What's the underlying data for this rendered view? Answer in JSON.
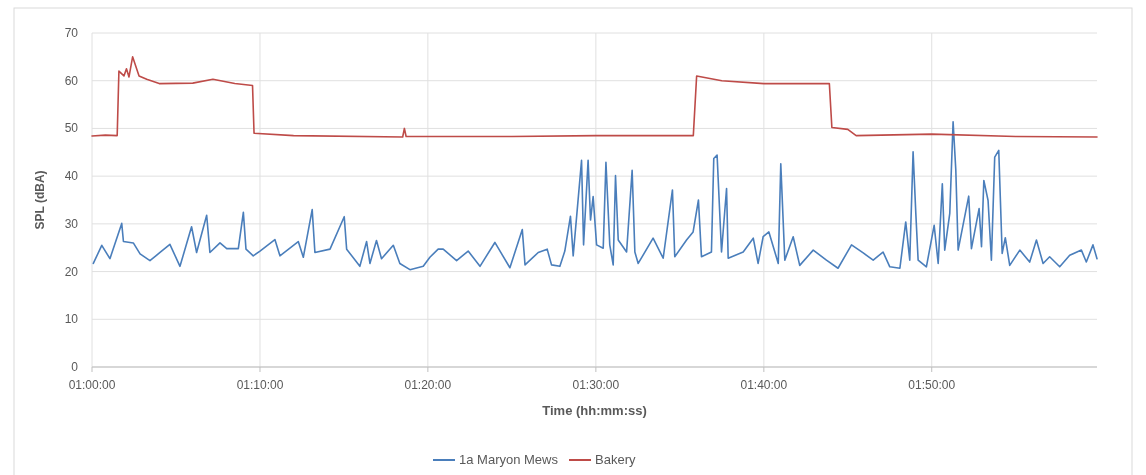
{
  "chart_data": {
    "type": "line",
    "xlabel": "Time (hh:mm:ss)",
    "ylabel": "SPL (dBA)",
    "xlim": [
      1,
      1.9973
    ],
    "xticks": [
      {
        "value": 1,
        "label": "01:00:00"
      },
      {
        "value": 1.1667,
        "label": "01:10:00"
      },
      {
        "value": 1.3333,
        "label": "01:20:00"
      },
      {
        "value": 1.5,
        "label": "01:30:00"
      },
      {
        "value": 1.6667,
        "label": "01:40:00"
      },
      {
        "value": 1.8333,
        "label": "01:50:00"
      }
    ],
    "ylim": [
      0,
      70
    ],
    "yticks": [
      0,
      10,
      20,
      30,
      40,
      50,
      60,
      70
    ],
    "grid": true,
    "legend": "bottom",
    "series": [
      {
        "name": "1a Maryon Mews",
        "color": "#4a7ebb",
        "x": [
          1.0013,
          1.0097,
          1.0178,
          1.0295,
          1.0312,
          1.041,
          1.0477,
          1.0575,
          1.0675,
          1.0773,
          1.0873,
          1.0988,
          1.1038,
          1.1138,
          1.117,
          1.127,
          1.1337,
          1.1452,
          1.1502,
          1.1528,
          1.16,
          1.1667,
          1.1815,
          1.1865,
          1.2047,
          1.2097,
          1.2185,
          1.2212,
          1.2362,
          1.2503,
          1.2527,
          1.2658,
          1.2725,
          1.2758,
          1.2823,
          1.2873,
          1.299,
          1.3055,
          1.3155,
          1.3287,
          1.3353,
          1.3435,
          1.3485,
          1.3618,
          1.3733,
          1.385,
          1.3998,
          1.4147,
          1.427,
          1.4297,
          1.4428,
          1.4517,
          1.456,
          1.4643,
          1.4692,
          1.4748,
          1.4775,
          1.4858,
          1.4878,
          1.4923,
          1.4947,
          1.4973,
          1.5007,
          1.5073,
          1.51,
          1.5138,
          1.5172,
          1.5195,
          1.5222,
          1.5305,
          1.536,
          1.5387,
          1.542,
          1.5568,
          1.5668,
          1.576,
          1.5783,
          1.59,
          1.5965,
          1.6018,
          1.6048,
          1.6147,
          1.617,
          1.6203,
          1.6247,
          1.6297,
          1.6313,
          1.6462,
          1.6562,
          1.661,
          1.666,
          1.6717,
          1.681,
          1.6835,
          1.6875,
          1.6958,
          1.7023,
          1.7157,
          1.7288,
          1.7403,
          1.7537,
          1.7653,
          1.7752,
          1.785,
          1.7917,
          1.8017,
          1.8075,
          1.8115,
          1.8148,
          1.8175,
          1.8198,
          1.828,
          1.8357,
          1.8397,
          1.8438,
          1.8462,
          1.8512,
          1.8545,
          1.8572,
          1.8595,
          1.87,
          1.8727,
          1.8803,
          1.8827,
          1.885,
          1.8892,
          1.8925,
          1.8958,
          1.8998,
          1.9032,
          1.9063,
          1.9107,
          1.9207,
          1.9305,
          1.9372,
          1.9438,
          1.9503,
          1.9603,
          1.9702,
          1.9818,
          1.9867,
          1.9933,
          1.9973
        ],
        "values": [
          21.7,
          25.5,
          22.7,
          30.1,
          26.3,
          26,
          23.7,
          22.3,
          24,
          25.7,
          21.1,
          29.4,
          24,
          31.8,
          24,
          26,
          24.8,
          24.8,
          32.4,
          24.7,
          23.3,
          24.3,
          26.7,
          23.3,
          26.3,
          23,
          33,
          24,
          24.7,
          31.5,
          24.7,
          21.1,
          26.3,
          21.7,
          26.5,
          22.7,
          25.5,
          21.7,
          20.4,
          21.1,
          23,
          24.7,
          24.7,
          22.3,
          24.3,
          21.1,
          26.1,
          20.8,
          28.8,
          21.4,
          24,
          24.7,
          21.4,
          21.1,
          24.3,
          31.6,
          23.3,
          43.3,
          25.6,
          43.3,
          30.8,
          35.7,
          25.6,
          24.9,
          42.9,
          25.6,
          21.4,
          40.1,
          26.6,
          24.1,
          41.2,
          24.1,
          21.7,
          27,
          22.8,
          37.1,
          23.1,
          26.6,
          28.3,
          35,
          23.1,
          24.1,
          43.7,
          44.4,
          24.1,
          37.4,
          22.8,
          24.1,
          27,
          21.7,
          27.3,
          28.3,
          21.7,
          42.6,
          22.4,
          27.3,
          21.3,
          24.5,
          22.4,
          20.7,
          25.6,
          23.9,
          22.4,
          24.1,
          21,
          20.7,
          30.4,
          22.4,
          45.1,
          32.2,
          22.4,
          21,
          29.7,
          21.7,
          38.4,
          24.5,
          32.2,
          51.4,
          41.2,
          24.5,
          35.8,
          24.8,
          33.2,
          25.2,
          39.1,
          34.9,
          22.4,
          44,
          45.4,
          23.8,
          27.1,
          21.3,
          24.5,
          22,
          26.6,
          21.7,
          23.1,
          21,
          23.4,
          24.5,
          22,
          25.6,
          22.7
        ]
      },
      {
        "name": "Bakery",
        "color": "#be4b48",
        "x": [
          1,
          1.0133,
          1.025,
          1.0267,
          1.0317,
          1.0342,
          1.0367,
          1.0403,
          1.0467,
          1.0543,
          1.0667,
          1.1,
          1.12,
          1.1417,
          1.1593,
          1.1608,
          1.2,
          1.3083,
          1.31,
          1.3117,
          1.4167,
          1.5,
          1.5967,
          1.6,
          1.625,
          1.6667,
          1.7317,
          1.7342,
          1.75,
          1.7583,
          1.8333,
          1.9167,
          1.9973
        ],
        "values": [
          48.4,
          48.6,
          48.5,
          62,
          61,
          62.5,
          60.8,
          65,
          61,
          60.3,
          59.4,
          59.5,
          60.3,
          59.4,
          59,
          49,
          48.5,
          48.2,
          50,
          48.3,
          48.3,
          48.5,
          48.5,
          61,
          60,
          59.4,
          59.4,
          50.2,
          49.8,
          48.5,
          48.8,
          48.3,
          48.2
        ]
      }
    ]
  }
}
